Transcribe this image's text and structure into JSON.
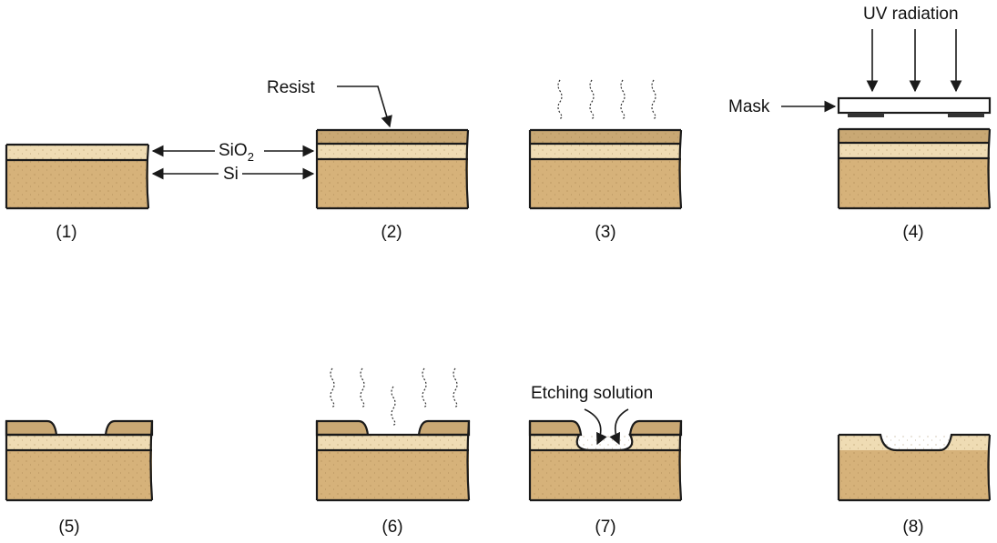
{
  "colors": {
    "silicon": "#d6b27a",
    "oxide": "#efdcb4",
    "resist": "#c9a874",
    "outline": "#1a1a1a",
    "mask": "#ffffff",
    "background": "#ffffff"
  },
  "labels": {
    "resist": "Resist",
    "sio2_main": "SiO",
    "sio2_sub": "2",
    "si": "Si",
    "mask": "Mask",
    "uv": "UV radiation",
    "etching": "Etching solution"
  },
  "stages": [
    "(1)",
    "(2)",
    "(3)",
    "(4)",
    "(5)",
    "(6)",
    "(7)",
    "(8)"
  ]
}
